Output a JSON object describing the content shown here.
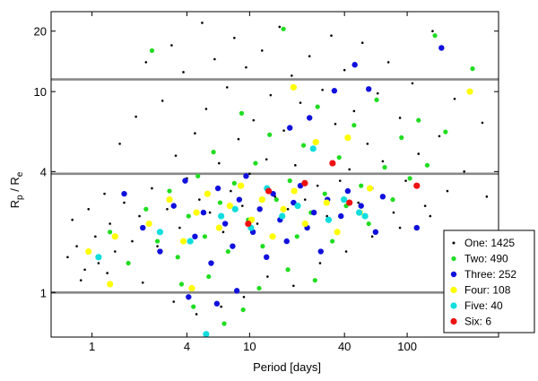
{
  "chart_data": {
    "type": "scatter",
    "xlabel": "Period [days]",
    "ylabel_main": "R",
    "ylabel_sub_p": "p",
    "ylabel_sep": " / R",
    "ylabel_sub_e": "e",
    "x_scale": "log",
    "y_scale": "log",
    "xlim": [
      0.55,
      380
    ],
    "ylim": [
      0.6,
      25
    ],
    "x_ticks": [
      {
        "value": 1,
        "label": "1"
      },
      {
        "value": 4,
        "label": "4"
      },
      {
        "value": 10,
        "label": "10"
      },
      {
        "value": 40,
        "label": "40"
      },
      {
        "value": 100,
        "label": "100"
      }
    ],
    "y_ticks": [
      {
        "value": 1,
        "label": "1"
      },
      {
        "value": 4,
        "label": "4"
      },
      {
        "value": 10,
        "label": "10"
      },
      {
        "value": 20,
        "label": "20"
      }
    ],
    "reference_lines_y": [
      1,
      3.9,
      11.5
    ],
    "legend_position": "lower-right",
    "series": [
      {
        "name": "One: 1425",
        "color": "#000000",
        "marker_size": 1.3,
        "count": 1425,
        "points": [
          [
            0.7,
            1.5
          ],
          [
            0.75,
            2.3
          ],
          [
            0.8,
            1.7
          ],
          [
            0.9,
            1.3
          ],
          [
            0.95,
            2.6
          ],
          [
            1.05,
            1.9
          ],
          [
            1.1,
            1.4
          ],
          [
            1.2,
            3.1
          ],
          [
            1.3,
            2.2
          ],
          [
            1.4,
            1.6
          ],
          [
            1.5,
            5.5
          ],
          [
            1.6,
            2.8
          ],
          [
            1.8,
            1.8
          ],
          [
            1.9,
            7.5
          ],
          [
            2.0,
            2.4
          ],
          [
            2.2,
            14.0
          ],
          [
            2.4,
            3.3
          ],
          [
            2.6,
            1.7
          ],
          [
            2.8,
            9.0
          ],
          [
            3.0,
            2.6
          ],
          [
            3.2,
            17.0
          ],
          [
            3.4,
            4.8
          ],
          [
            3.6,
            2.1
          ],
          [
            3.8,
            12.5
          ],
          [
            4.0,
            3.7
          ],
          [
            4.2,
            1.8
          ],
          [
            4.5,
            6.2
          ],
          [
            4.8,
            2.9
          ],
          [
            5.0,
            22.0
          ],
          [
            5.3,
            8.2
          ],
          [
            5.6,
            2.5
          ],
          [
            6.0,
            14.5
          ],
          [
            6.4,
            4.4
          ],
          [
            6.8,
            2.0
          ],
          [
            7.2,
            10.5
          ],
          [
            7.6,
            3.2
          ],
          [
            8.0,
            18.5
          ],
          [
            8.5,
            5.8
          ],
          [
            9.0,
            2.7
          ],
          [
            9.5,
            13.2
          ],
          [
            10.0,
            3.9
          ],
          [
            10.6,
            7.2
          ],
          [
            11.2,
            2.2
          ],
          [
            12.0,
            16.0
          ],
          [
            12.8,
            4.6
          ],
          [
            13.6,
            9.6
          ],
          [
            14.5,
            3.0
          ],
          [
            15.5,
            21.0
          ],
          [
            16.5,
            6.4
          ],
          [
            17.5,
            2.6
          ],
          [
            18.5,
            12.0
          ],
          [
            19.5,
            4.3
          ],
          [
            21.0,
            8.8
          ],
          [
            22.5,
            2.9
          ],
          [
            24.0,
            15.0
          ],
          [
            25.5,
            5.2
          ],
          [
            27.0,
            3.4
          ],
          [
            29.0,
            10.2
          ],
          [
            31.0,
            2.4
          ],
          [
            33.0,
            19.0
          ],
          [
            35.0,
            6.9
          ],
          [
            37.5,
            3.6
          ],
          [
            40.0,
            12.8
          ],
          [
            43.0,
            4.1
          ],
          [
            46.0,
            8.0
          ],
          [
            49.0,
            2.8
          ],
          [
            52.0,
            17.5
          ],
          [
            56.0,
            5.5
          ],
          [
            60.0,
            3.3
          ],
          [
            65.0,
            9.8
          ],
          [
            70.0,
            4.5
          ],
          [
            76.0,
            14.0
          ],
          [
            82.0,
            2.5
          ],
          [
            90.0,
            7.4
          ],
          [
            98.0,
            3.6
          ],
          [
            108.0,
            11.0
          ],
          [
            118.0,
            4.9
          ],
          [
            130.0,
            2.7
          ],
          [
            145.0,
            20.0
          ],
          [
            160.0,
            6.0
          ],
          [
            180.0,
            3.2
          ],
          [
            200.0,
            9.2
          ],
          [
            230.0,
            4.0
          ],
          [
            260.0,
            13.0
          ],
          [
            300.0,
            7.0
          ],
          [
            0.85,
            1.15
          ],
          [
            1.25,
            1.25
          ],
          [
            2.1,
            1.12
          ],
          [
            3.3,
            0.9
          ],
          [
            4.6,
            0.78
          ],
          [
            6.6,
            0.85
          ],
          [
            9.2,
            0.95
          ],
          [
            13.0,
            1.2
          ],
          [
            19.0,
            1.08
          ],
          [
            28.0,
            1.4
          ],
          [
            41.0,
            1.6
          ],
          [
            60.0,
            1.9
          ],
          [
            90.0,
            2.1
          ],
          [
            140.0,
            2.4
          ],
          [
            210.0,
            1.8
          ],
          [
            320.0,
            3.0
          ]
        ]
      },
      {
        "name": "Two: 490",
        "color": "#1fdd1f",
        "marker_size": 2.6,
        "count": 490,
        "points": [
          [
            1.3,
            2.0
          ],
          [
            1.7,
            1.4
          ],
          [
            2.2,
            2.6
          ],
          [
            2.6,
            1.8
          ],
          [
            3.1,
            3.2
          ],
          [
            3.5,
            1.5
          ],
          [
            4.1,
            2.4
          ],
          [
            4.7,
            3.8
          ],
          [
            5.2,
            1.9
          ],
          [
            5.9,
            5.0
          ],
          [
            6.5,
            2.8
          ],
          [
            7.3,
            1.6
          ],
          [
            8.0,
            3.5
          ],
          [
            8.9,
            7.8
          ],
          [
            9.8,
            2.3
          ],
          [
            10.9,
            4.4
          ],
          [
            12.1,
            1.7
          ],
          [
            13.4,
            6.1
          ],
          [
            14.8,
            2.9
          ],
          [
            16.4,
            20.5
          ],
          [
            18.0,
            3.6
          ],
          [
            20.0,
            1.9
          ],
          [
            22.0,
            5.4
          ],
          [
            24.5,
            2.5
          ],
          [
            27.0,
            8.4
          ],
          [
            30.0,
            3.1
          ],
          [
            33.5,
            1.8
          ],
          [
            37.0,
            4.7
          ],
          [
            41.0,
            2.7
          ],
          [
            46.0,
            6.8
          ],
          [
            51.0,
            3.4
          ],
          [
            57.0,
            2.2
          ],
          [
            64.0,
            9.1
          ],
          [
            72.0,
            4.2
          ],
          [
            81.0,
            2.9
          ],
          [
            92.0,
            5.9
          ],
          [
            104.0,
            3.7
          ],
          [
            118.0,
            7.2
          ],
          [
            134.0,
            4.3
          ],
          [
            150.0,
            19.0
          ],
          [
            175.0,
            6.3
          ],
          [
            2.4,
            16.0
          ],
          [
            4.4,
            0.85
          ],
          [
            6.9,
            0.7
          ],
          [
            9.1,
            0.82
          ],
          [
            3.7,
            1.1
          ],
          [
            5.5,
            1.2
          ],
          [
            11.5,
            1.05
          ],
          [
            17.5,
            1.3
          ],
          [
            26.0,
            1.15
          ],
          [
            260.0,
            13.0
          ]
        ]
      },
      {
        "name": "Three: 252",
        "color": "#1010dd",
        "marker_size": 3.2,
        "count": 252,
        "points": [
          [
            1.6,
            3.1
          ],
          [
            2.1,
            2.1
          ],
          [
            2.7,
            1.6
          ],
          [
            3.3,
            2.7
          ],
          [
            3.9,
            3.6
          ],
          [
            4.5,
            1.9
          ],
          [
            5.1,
            2.5
          ],
          [
            5.7,
            1.4
          ],
          [
            6.3,
            3.3
          ],
          [
            7.0,
            2.2
          ],
          [
            7.8,
            1.7
          ],
          [
            8.6,
            2.9
          ],
          [
            9.5,
            3.8
          ],
          [
            10.5,
            2.0
          ],
          [
            11.6,
            2.6
          ],
          [
            12.8,
            1.5
          ],
          [
            14.1,
            3.1
          ],
          [
            15.6,
            2.3
          ],
          [
            17.2,
            1.8
          ],
          [
            19.0,
            2.8
          ],
          [
            21.0,
            3.4
          ],
          [
            23.2,
            2.1
          ],
          [
            25.6,
            2.5
          ],
          [
            28.3,
            1.6
          ],
          [
            31.2,
            2.9
          ],
          [
            34.5,
            10.1
          ],
          [
            38.0,
            2.4
          ],
          [
            42.0,
            3.2
          ],
          [
            46.5,
            13.6
          ],
          [
            51.0,
            2.7
          ],
          [
            57.0,
            10.3
          ],
          [
            63.0,
            2.0
          ],
          [
            70.0,
            3.0
          ],
          [
            115.0,
            2.1
          ],
          [
            165.0,
            16.5
          ],
          [
            4.1,
            0.95
          ],
          [
            6.2,
            0.88
          ],
          [
            8.3,
            1.02
          ],
          [
            18.0,
            6.6
          ],
          [
            24.0,
            7.4
          ]
        ]
      },
      {
        "name": "Four: 108",
        "color": "#ffff00",
        "marker_size": 3.6,
        "count": 108,
        "points": [
          [
            0.95,
            1.6
          ],
          [
            1.4,
            1.9
          ],
          [
            2.3,
            2.2
          ],
          [
            3.1,
            2.9
          ],
          [
            3.8,
            1.8
          ],
          [
            4.6,
            2.5
          ],
          [
            5.4,
            3.1
          ],
          [
            6.4,
            2.1
          ],
          [
            7.5,
            2.7
          ],
          [
            8.8,
            3.4
          ],
          [
            10.3,
            2.3
          ],
          [
            12.0,
            2.9
          ],
          [
            14.0,
            1.9
          ],
          [
            16.4,
            2.6
          ],
          [
            19.2,
            3.2
          ],
          [
            22.5,
            2.2
          ],
          [
            26.3,
            5.6
          ],
          [
            30.8,
            2.8
          ],
          [
            36.0,
            2.0
          ],
          [
            42.0,
            5.9
          ],
          [
            50.0,
            2.5
          ],
          [
            58.0,
            3.3
          ],
          [
            19.0,
            10.5
          ],
          [
            4.3,
            1.05
          ],
          [
            1.3,
            1.1
          ],
          [
            250.0,
            10.0
          ]
        ]
      },
      {
        "name": "Five: 40",
        "color": "#10dddd",
        "marker_size": 3.6,
        "count": 40,
        "points": [
          [
            1.1,
            1.5
          ],
          [
            2.7,
            2.0
          ],
          [
            4.2,
            1.8
          ],
          [
            5.3,
            0.62
          ],
          [
            6.6,
            2.4
          ],
          [
            8.1,
            2.6
          ],
          [
            10.2,
            2.1
          ],
          [
            12.9,
            3.3
          ],
          [
            16.1,
            2.4
          ],
          [
            20.2,
            2.7
          ],
          [
            25.3,
            5.2
          ],
          [
            31.7,
            2.3
          ],
          [
            39.7,
            2.9
          ],
          [
            49.6,
            2.5
          ],
          [
            54.0,
            2.4
          ]
        ]
      },
      {
        "name": "Six: 6",
        "color": "#ee1111",
        "marker_size": 3.6,
        "count": 6,
        "points": [
          [
            9.8,
            2.2
          ],
          [
            13.2,
            3.2
          ],
          [
            22.4,
            3.5
          ],
          [
            33.6,
            4.4
          ],
          [
            43.0,
            2.8
          ],
          [
            115.0,
            3.4
          ]
        ]
      }
    ]
  }
}
